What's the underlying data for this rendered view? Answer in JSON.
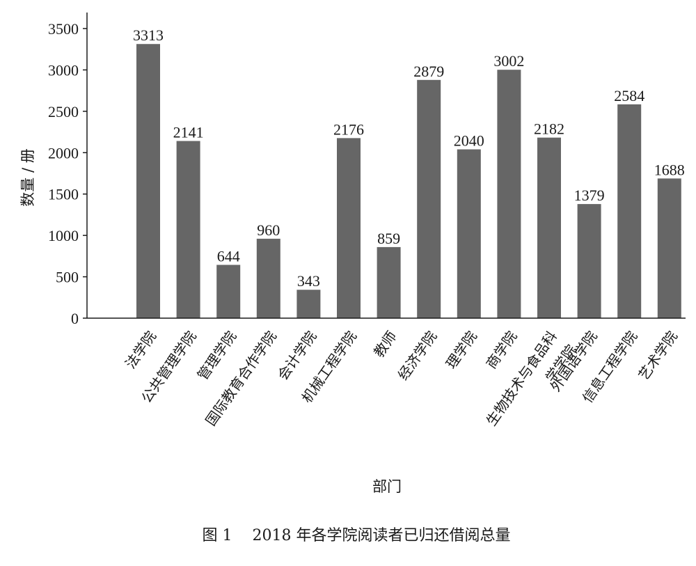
{
  "chart_data": {
    "type": "bar",
    "categories": [
      [
        "法学院"
      ],
      [
        "公共管理学院"
      ],
      [
        "管理学院"
      ],
      [
        "国际教育合作学院"
      ],
      [
        "会计学院"
      ],
      [
        "机械工程学院"
      ],
      [
        "教师"
      ],
      [
        "经济学院"
      ],
      [
        "理学院"
      ],
      [
        "商学院"
      ],
      [
        "生物技术与食品科",
        "学学院"
      ],
      [
        "外国语学院"
      ],
      [
        "信息工程学院"
      ],
      [
        "艺术学院"
      ]
    ],
    "values": [
      3313,
      2141,
      644,
      960,
      343,
      2176,
      859,
      2879,
      2040,
      3002,
      2182,
      1379,
      2584,
      1688
    ],
    "xlabel": "部门",
    "ylabel": "数量 / 册",
    "ylim": [
      0,
      3500
    ],
    "yticks": [
      0,
      500,
      1000,
      1500,
      2000,
      2500,
      3000,
      3500
    ],
    "bar_color": "#666666",
    "grid": false
  },
  "caption": "图 1　 2018 年各学院阅读者已归还借阅总量"
}
